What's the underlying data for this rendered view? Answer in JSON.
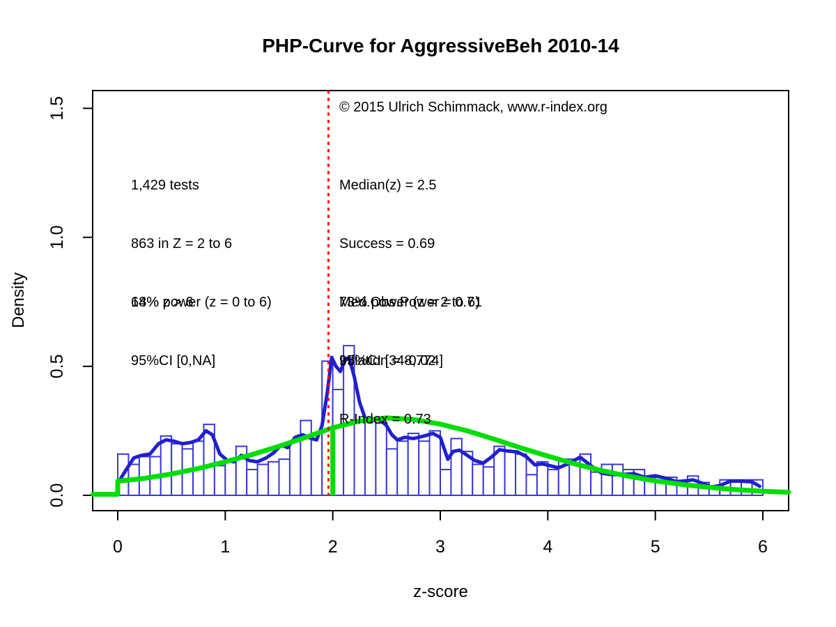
{
  "title": "PHP-Curve for AggressiveBeh 2010-14",
  "annotations": {
    "copyright": "© 2015 Ulrich Schimmack, www.r-index.org",
    "left_stats": [
      "1,429 tests",
      "863 in Z = 2 to 6",
      "14% z > 6"
    ],
    "right_stats": [
      "Median(z) = 2.5",
      "Success = 0.69",
      "Med.Obs.Power = 0.71",
      "Inflation = -0.02",
      "R-Index = 0.73"
    ],
    "left_power": [
      "68% power (z = 0 to 6)",
      "95%CI [0,NA]"
    ],
    "right_power": [
      "73% power (z = 2 to 6)",
      "95%CI [348,774]"
    ]
  },
  "colors": {
    "bar_border": "#3838D8",
    "bar_fill": "#ffffff",
    "density_curve": "#2020CC",
    "model_curve": "#00DD00",
    "significance_line": "#FF0000",
    "axis": "#000000"
  },
  "chart_data": {
    "type": "bar",
    "subtype": "histogram-with-density-curves",
    "title": "PHP-Curve for AggressiveBeh 2010-14",
    "xlabel": "z-score",
    "ylabel": "Density",
    "xlim": [
      -0.23,
      6.24
    ],
    "ylim": [
      0,
      1.57
    ],
    "grid": false,
    "legend": "none",
    "x_ticks": [
      0,
      1,
      2,
      3,
      4,
      5,
      6
    ],
    "y_ticks": [
      0.0,
      0.5,
      1.0,
      1.5
    ],
    "y_tick_labels": [
      "0.0",
      "0.5",
      "1.0",
      "1.5"
    ],
    "histogram": {
      "bin_start": 0,
      "bin_width": 0.1,
      "densities": [
        0.16,
        0.12,
        0.15,
        0.15,
        0.23,
        0.2,
        0.18,
        0.21,
        0.275,
        0.115,
        0.13,
        0.19,
        0.1,
        0.12,
        0.13,
        0.14,
        0.21,
        0.29,
        0.24,
        0.52,
        0.41,
        0.58,
        0.29,
        0.3,
        0.28,
        0.18,
        0.21,
        0.24,
        0.21,
        0.25,
        0.1,
        0.22,
        0.17,
        0.12,
        0.11,
        0.19,
        0.17,
        0.16,
        0.08,
        0.13,
        0.1,
        0.14,
        0.14,
        0.16,
        0.09,
        0.12,
        0.12,
        0.1,
        0.1,
        0.07,
        0.07,
        0.07,
        0.05,
        0.075,
        0.05,
        0.03,
        0.06,
        0.06,
        0.06,
        0.06
      ]
    },
    "series": [
      {
        "name": "observed-density-kernel",
        "points": [
          [
            0.02,
            0.06
          ],
          [
            0.08,
            0.1
          ],
          [
            0.15,
            0.145
          ],
          [
            0.22,
            0.155
          ],
          [
            0.3,
            0.16
          ],
          [
            0.38,
            0.2
          ],
          [
            0.45,
            0.215
          ],
          [
            0.52,
            0.21
          ],
          [
            0.6,
            0.2
          ],
          [
            0.68,
            0.205
          ],
          [
            0.75,
            0.215
          ],
          [
            0.82,
            0.25
          ],
          [
            0.88,
            0.235
          ],
          [
            0.95,
            0.16
          ],
          [
            1.02,
            0.135
          ],
          [
            1.08,
            0.13
          ],
          [
            1.15,
            0.155
          ],
          [
            1.22,
            0.135
          ],
          [
            1.3,
            0.13
          ],
          [
            1.38,
            0.145
          ],
          [
            1.45,
            0.165
          ],
          [
            1.52,
            0.195
          ],
          [
            1.58,
            0.185
          ],
          [
            1.65,
            0.225
          ],
          [
            1.72,
            0.235
          ],
          [
            1.8,
            0.22
          ],
          [
            1.85,
            0.215
          ],
          [
            1.9,
            0.27
          ],
          [
            1.95,
            0.4
          ],
          [
            1.99,
            0.535
          ],
          [
            2.03,
            0.5
          ],
          [
            2.07,
            0.48
          ],
          [
            2.11,
            0.52
          ],
          [
            2.15,
            0.535
          ],
          [
            2.2,
            0.46
          ],
          [
            2.25,
            0.36
          ],
          [
            2.3,
            0.3
          ],
          [
            2.35,
            0.285
          ],
          [
            2.4,
            0.295
          ],
          [
            2.45,
            0.29
          ],
          [
            2.5,
            0.27
          ],
          [
            2.55,
            0.235
          ],
          [
            2.6,
            0.215
          ],
          [
            2.67,
            0.225
          ],
          [
            2.75,
            0.22
          ],
          [
            2.85,
            0.23
          ],
          [
            2.93,
            0.24
          ],
          [
            3.0,
            0.225
          ],
          [
            3.07,
            0.14
          ],
          [
            3.12,
            0.17
          ],
          [
            3.18,
            0.175
          ],
          [
            3.25,
            0.155
          ],
          [
            3.32,
            0.135
          ],
          [
            3.4,
            0.125
          ],
          [
            3.48,
            0.15
          ],
          [
            3.55,
            0.177
          ],
          [
            3.62,
            0.172
          ],
          [
            3.72,
            0.168
          ],
          [
            3.8,
            0.15
          ],
          [
            3.88,
            0.118
          ],
          [
            3.95,
            0.122
          ],
          [
            4.02,
            0.115
          ],
          [
            4.1,
            0.107
          ],
          [
            4.2,
            0.124
          ],
          [
            4.3,
            0.148
          ],
          [
            4.4,
            0.115
          ],
          [
            4.5,
            0.086
          ],
          [
            4.6,
            0.08
          ],
          [
            4.7,
            0.081
          ],
          [
            4.8,
            0.084
          ],
          [
            4.9,
            0.07
          ],
          [
            5.0,
            0.076
          ],
          [
            5.1,
            0.066
          ],
          [
            5.2,
            0.053
          ],
          [
            5.3,
            0.057
          ],
          [
            5.35,
            0.06
          ],
          [
            5.45,
            0.045
          ],
          [
            5.52,
            0.032
          ],
          [
            5.6,
            0.038
          ],
          [
            5.7,
            0.055
          ],
          [
            5.8,
            0.055
          ],
          [
            5.9,
            0.052
          ],
          [
            5.97,
            0.035
          ]
        ]
      },
      {
        "name": "model-predicted-density",
        "points": [
          [
            -0.23,
            0.004
          ],
          [
            0,
            0.004
          ],
          [
            0,
            0.055
          ],
          [
            0.25,
            0.066
          ],
          [
            0.5,
            0.083
          ],
          [
            0.75,
            0.104
          ],
          [
            1.0,
            0.13
          ],
          [
            1.25,
            0.158
          ],
          [
            1.5,
            0.19
          ],
          [
            1.75,
            0.225
          ],
          [
            2.0,
            0.262
          ],
          [
            2.25,
            0.288
          ],
          [
            2.5,
            0.3
          ],
          [
            2.75,
            0.294
          ],
          [
            3.0,
            0.276
          ],
          [
            3.25,
            0.25
          ],
          [
            3.5,
            0.218
          ],
          [
            3.75,
            0.184
          ],
          [
            4.0,
            0.152
          ],
          [
            4.25,
            0.122
          ],
          [
            4.5,
            0.096
          ],
          [
            4.75,
            0.074
          ],
          [
            5.0,
            0.056
          ],
          [
            5.25,
            0.042
          ],
          [
            5.5,
            0.031
          ],
          [
            5.75,
            0.022
          ],
          [
            6.0,
            0.016
          ],
          [
            6.24,
            0.012
          ]
        ]
      }
    ],
    "vlines": [
      {
        "name": "significance-threshold",
        "x": 1.96,
        "y0": 0,
        "y1": 1.57,
        "style": "dotted",
        "color_key": "significance_line"
      },
      {
        "name": "model-selection-boundary",
        "x": 2.0,
        "y0": 0,
        "y1": 0.268,
        "style": "solid",
        "color_key": "model_curve"
      }
    ]
  }
}
